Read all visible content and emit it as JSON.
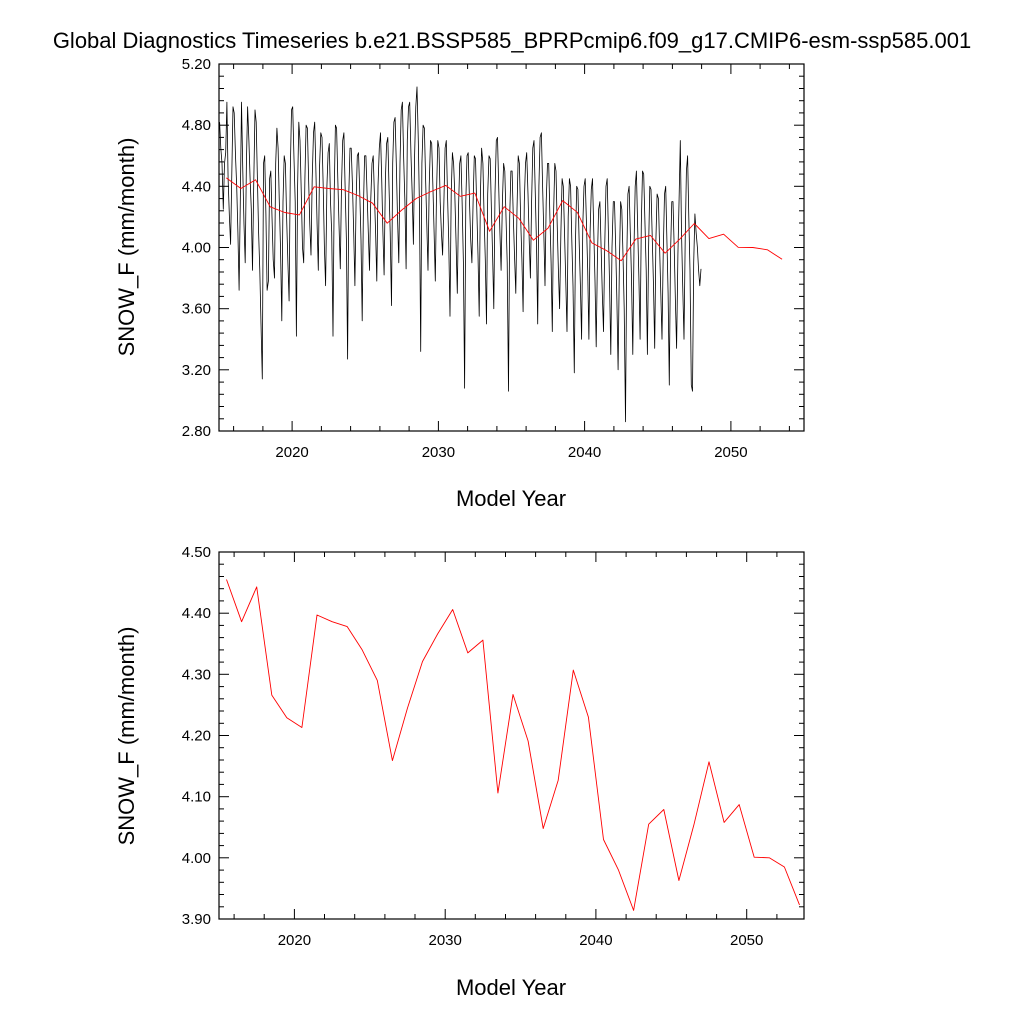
{
  "figure_title": "Global Diagnostics Timeseries b.e21.BSSP585_BPRPcmip6.f09_g17.CMIP6-esm-ssp585.001",
  "colors": {
    "monthly": "#000000",
    "annual": "#ff0000",
    "axes": "#000000"
  },
  "chart_data": [
    {
      "type": "line",
      "xlabel": "Model Year",
      "ylabel": "SNOW_F (mm/month)",
      "xlim": [
        2015,
        2055
      ],
      "ylim": [
        2.8,
        5.2
      ],
      "x_ticks": [
        2020,
        2030,
        2040,
        2050
      ],
      "x_tick_labels": [
        "2020",
        "2030",
        "2040",
        "2050"
      ],
      "y_ticks": [
        2.8,
        3.2,
        3.6,
        4.0,
        4.4,
        4.8,
        5.2
      ],
      "y_tick_labels": [
        "2.80",
        "3.20",
        "3.60",
        "4.00",
        "4.40",
        "4.80",
        "5.20"
      ],
      "grid": false,
      "series": [
        {
          "id": "monthly",
          "start_year": 2015,
          "values_per_year": 12,
          "values": [
            4.82,
            4.65,
            4.55,
            4.25,
            4.55,
            4.62,
            4.95,
            4.45,
            4.2,
            4.02,
            4.48,
            4.92,
            4.88,
            4.6,
            4.4,
            4.1,
            3.72,
            4.3,
            4.95,
            4.5,
            4.15,
            3.9,
            4.55,
            4.92,
            4.7,
            4.45,
            4.25,
            3.85,
            4.4,
            4.9,
            4.82,
            4.45,
            4.1,
            3.85,
            3.5,
            3.14,
            4.55,
            4.6,
            4.22,
            3.72,
            3.78,
            4.45,
            4.5,
            4.2,
            3.92,
            3.8,
            4.55,
            4.78,
            4.65,
            4.3,
            4.0,
            3.52,
            4.3,
            4.6,
            4.55,
            4.2,
            3.9,
            3.65,
            4.5,
            4.9,
            4.92,
            4.58,
            4.3,
            3.42,
            4.4,
            4.82,
            4.7,
            4.35,
            4.0,
            3.9,
            4.45,
            4.8,
            4.78,
            4.45,
            4.15,
            3.95,
            4.45,
            4.75,
            4.82,
            4.5,
            4.15,
            3.85,
            4.52,
            4.75,
            4.72,
            4.4,
            4.0,
            3.75,
            4.4,
            4.62,
            4.68,
            4.3,
            4.1,
            3.42,
            4.35,
            4.8,
            4.78,
            4.45,
            4.15,
            3.86,
            4.4,
            4.7,
            4.75,
            4.4,
            4.05,
            3.27,
            4.35,
            4.65,
            4.65,
            4.4,
            4.1,
            3.75,
            4.3,
            4.6,
            4.62,
            4.35,
            4.05,
            3.52,
            4.25,
            4.6,
            4.6,
            4.35,
            4.1,
            3.85,
            4.3,
            4.55,
            4.6,
            4.35,
            4.1,
            3.78,
            4.4,
            4.65,
            4.75,
            4.45,
            4.1,
            3.82,
            4.45,
            4.68,
            4.72,
            4.4,
            4.1,
            3.62,
            4.55,
            4.82,
            4.85,
            4.55,
            4.2,
            3.9,
            4.55,
            4.9,
            4.95,
            4.6,
            4.3,
            3.86,
            4.7,
            4.92,
            4.95,
            4.6,
            4.35,
            4.02,
            4.6,
            4.92,
            5.05,
            4.7,
            4.25,
            3.32,
            4.55,
            4.8,
            4.78,
            4.45,
            4.15,
            3.85,
            4.4,
            4.7,
            4.68,
            4.4,
            4.1,
            3.78,
            4.35,
            4.7,
            4.65,
            4.3,
            4.1,
            3.95,
            4.3,
            4.65,
            4.7,
            4.35,
            4.05,
            3.55,
            4.35,
            4.62,
            4.55,
            4.35,
            4.05,
            3.7,
            4.25,
            4.55,
            4.6,
            4.3,
            3.9,
            3.08,
            4.3,
            4.6,
            4.62,
            4.3,
            4.05,
            3.9,
            4.3,
            4.6,
            4.58,
            4.25,
            3.95,
            3.55,
            4.35,
            4.65,
            4.55,
            4.2,
            3.92,
            3.5,
            4.35,
            4.6,
            4.58,
            4.25,
            3.95,
            3.6,
            4.35,
            4.7,
            4.72,
            4.4,
            4.1,
            3.85,
            4.3,
            4.55,
            4.5,
            4.2,
            3.9,
            3.06,
            4.2,
            4.5,
            4.5,
            4.2,
            3.95,
            3.7,
            4.25,
            4.6,
            4.55,
            4.2,
            3.92,
            3.58,
            4.3,
            4.55,
            4.62,
            4.35,
            4.05,
            3.8,
            4.3,
            4.65,
            4.7,
            4.35,
            4.02,
            3.5,
            4.4,
            4.72,
            4.75,
            4.4,
            4.1,
            3.75,
            4.3,
            4.55,
            4.55,
            4.2,
            3.9,
            3.45,
            4.2,
            4.55,
            4.5,
            4.15,
            3.85,
            3.6,
            4.1,
            4.45,
            4.4,
            4.1,
            3.8,
            3.45,
            4.2,
            4.45,
            4.4,
            4.05,
            3.75,
            3.18,
            4.05,
            4.4,
            4.38,
            4.05,
            3.75,
            3.4,
            4.15,
            4.4,
            4.45,
            4.15,
            3.85,
            3.4,
            4.1,
            4.38,
            4.45,
            4.1,
            3.78,
            3.35,
            3.92,
            4.25,
            4.3,
            4.0,
            3.7,
            3.45,
            4.0,
            4.4,
            4.45,
            4.1,
            3.75,
            3.3,
            4.0,
            4.3,
            4.3,
            4.0,
            3.65,
            3.2,
            3.9,
            4.3,
            4.25,
            3.95,
            3.6,
            2.86,
            3.9,
            4.35,
            4.4,
            4.1,
            3.8,
            3.3,
            4.0,
            4.4,
            4.5,
            4.15,
            3.8,
            3.4,
            4.15,
            4.5,
            4.48,
            4.15,
            3.85,
            3.3,
            4.0,
            4.4,
            4.38,
            4.05,
            3.75,
            3.34,
            4.05,
            4.35,
            4.32,
            4.0,
            3.7,
            3.4,
            3.95,
            4.35,
            4.4,
            4.05,
            3.7,
            3.1,
            3.95,
            4.3,
            4.3,
            4.0,
            3.65,
            3.34,
            3.95,
            4.32,
            4.7,
            4.1,
            3.75,
            3.4,
            4.05,
            4.5,
            4.6,
            4.2,
            3.85,
            3.1,
            3.06,
            3.9,
            4.22,
            4.1,
            4.0,
            3.85,
            3.75,
            3.86
          ]
        },
        {
          "id": "annual",
          "x": [
            2015.5,
            2016.5,
            2017.5,
            2018.5,
            2019.5,
            2020.5,
            2021.5,
            2022.5,
            2023.5,
            2024.5,
            2025.5,
            2026.5,
            2027.5,
            2028.5,
            2029.5,
            2030.5,
            2031.5,
            2032.5,
            2033.5,
            2034.5,
            2035.5,
            2036.5,
            2037.5,
            2038.5,
            2039.5,
            2040.5,
            2041.5,
            2042.5,
            2043.5,
            2044.5,
            2045.5,
            2046.5,
            2047.5,
            2048.5,
            2049.5,
            2050.5,
            2051.5,
            2052.5,
            2053.5
          ],
          "values": [
            4.455,
            4.386,
            4.443,
            4.266,
            4.229,
            4.213,
            4.397,
            4.386,
            4.378,
            4.34,
            4.29,
            4.159,
            4.245,
            4.321,
            4.366,
            4.406,
            4.335,
            4.356,
            4.106,
            4.267,
            4.191,
            4.048,
            4.127,
            4.307,
            4.23,
            4.03,
            3.98,
            3.914,
            4.055,
            4.079,
            3.963,
            4.054,
            4.157,
            4.058,
            4.087,
            4.001,
            4.0,
            3.985,
            3.923
          ]
        }
      ]
    },
    {
      "type": "line",
      "xlabel": "Model Year",
      "ylabel": "SNOW_F (mm/month)",
      "xlim": [
        2015,
        2053.8
      ],
      "ylim": [
        3.9,
        4.5
      ],
      "x_ticks": [
        2020,
        2030,
        2040,
        2050
      ],
      "x_tick_labels": [
        "2020",
        "2030",
        "2040",
        "2050"
      ],
      "y_ticks": [
        3.9,
        4.0,
        4.1,
        4.2,
        4.3,
        4.4,
        4.5
      ],
      "y_tick_labels": [
        "3.90",
        "4.00",
        "4.10",
        "4.20",
        "4.30",
        "4.40",
        "4.50"
      ],
      "grid": false,
      "series": [
        {
          "id": "annual",
          "x": [
            2015.5,
            2016.5,
            2017.5,
            2018.5,
            2019.5,
            2020.5,
            2021.5,
            2022.5,
            2023.5,
            2024.5,
            2025.5,
            2026.5,
            2027.5,
            2028.5,
            2029.5,
            2030.5,
            2031.5,
            2032.5,
            2033.5,
            2034.5,
            2035.5,
            2036.5,
            2037.5,
            2038.5,
            2039.5,
            2040.5,
            2041.5,
            2042.5,
            2043.5,
            2044.5,
            2045.5,
            2046.5,
            2047.5,
            2048.5,
            2049.5,
            2050.5,
            2051.5,
            2052.5,
            2053.5
          ],
          "values": [
            4.455,
            4.386,
            4.443,
            4.266,
            4.229,
            4.213,
            4.397,
            4.386,
            4.378,
            4.34,
            4.29,
            4.159,
            4.245,
            4.321,
            4.366,
            4.406,
            4.335,
            4.356,
            4.106,
            4.267,
            4.191,
            4.048,
            4.127,
            4.307,
            4.23,
            4.03,
            3.98,
            3.914,
            4.055,
            4.079,
            3.963,
            4.054,
            4.157,
            4.058,
            4.087,
            4.001,
            4.0,
            3.985,
            3.923
          ]
        }
      ]
    }
  ]
}
